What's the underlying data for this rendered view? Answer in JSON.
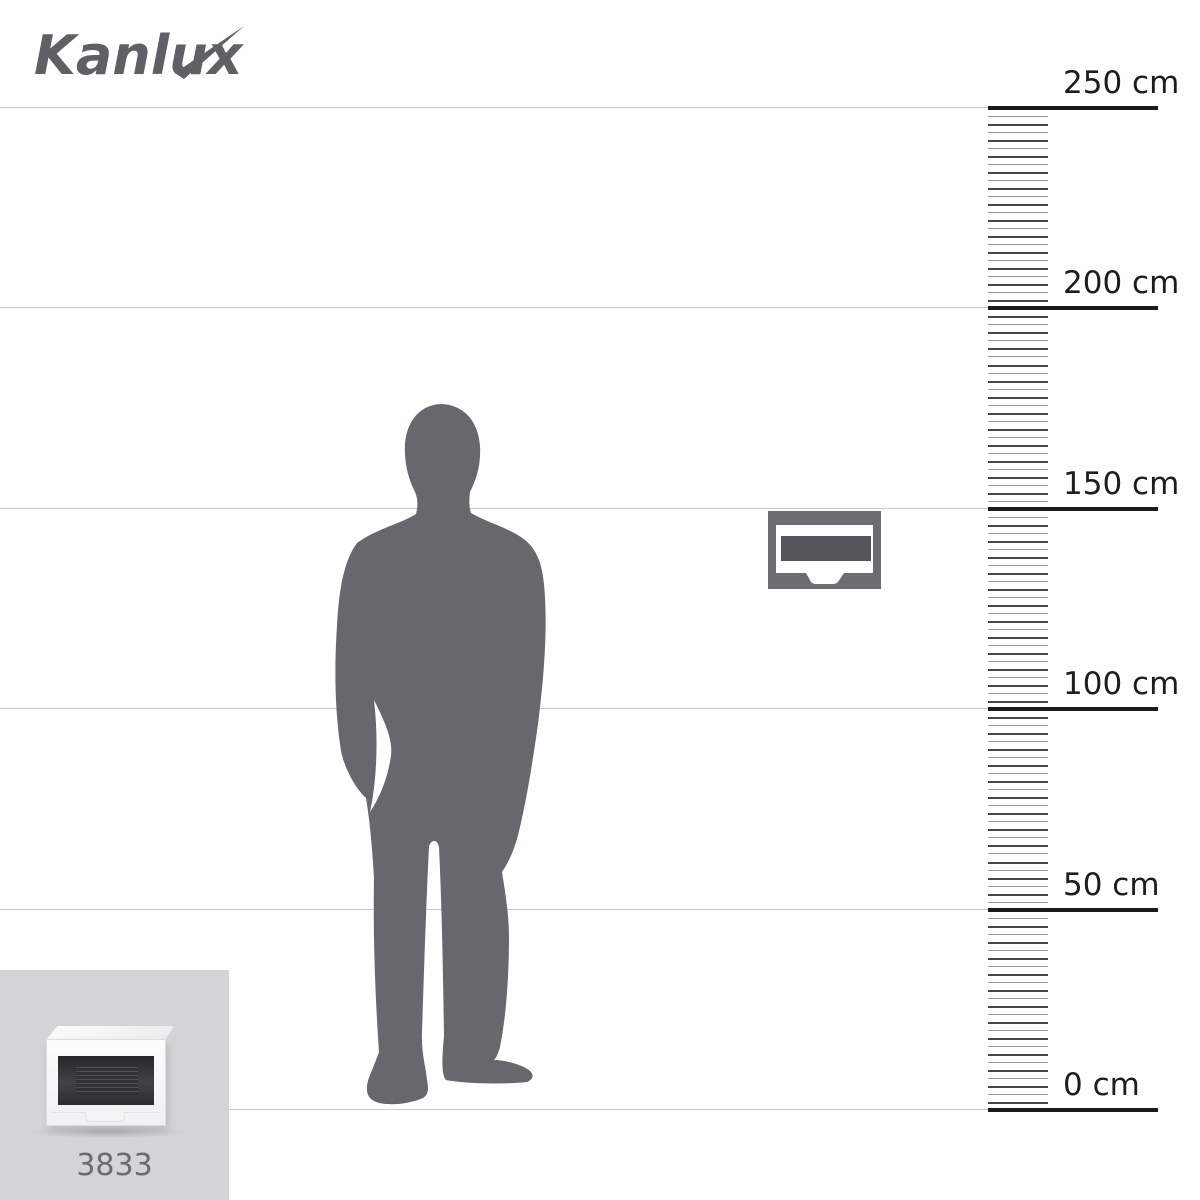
{
  "brand": {
    "name": "Kanlux"
  },
  "colors": {
    "logo": "#5e6065",
    "silhouette": "#66686d",
    "grid_line": "#c9cacb",
    "ruler_line": "#1a1a1a",
    "tick_dark": "#454649",
    "tick_light": "#9a9b9d",
    "label_text": "#1d1d1f",
    "pictogram_gray": "#6b6d72",
    "pictogram_dark": "#54565b",
    "thumb_bg": "#d3d4d6",
    "code_text": "#6b6c6f"
  },
  "ruler": {
    "unit": "cm",
    "range_cm": [
      0,
      250
    ],
    "major_step_cm": 50,
    "minor_tick_step_cm": 2,
    "marks": [
      {
        "cm": 250,
        "label": "250 cm"
      },
      {
        "cm": 200,
        "label": "200 cm"
      },
      {
        "cm": 150,
        "label": "150 cm"
      },
      {
        "cm": 100,
        "label": "100 cm"
      },
      {
        "cm": 50,
        "label": "50 cm"
      },
      {
        "cm": 0,
        "label": "0 cm"
      }
    ]
  },
  "figure": {
    "type": "human-silhouette"
  },
  "pictogram": {
    "type": "distribution-box"
  },
  "thumbnail": {
    "product_code": "3833"
  }
}
